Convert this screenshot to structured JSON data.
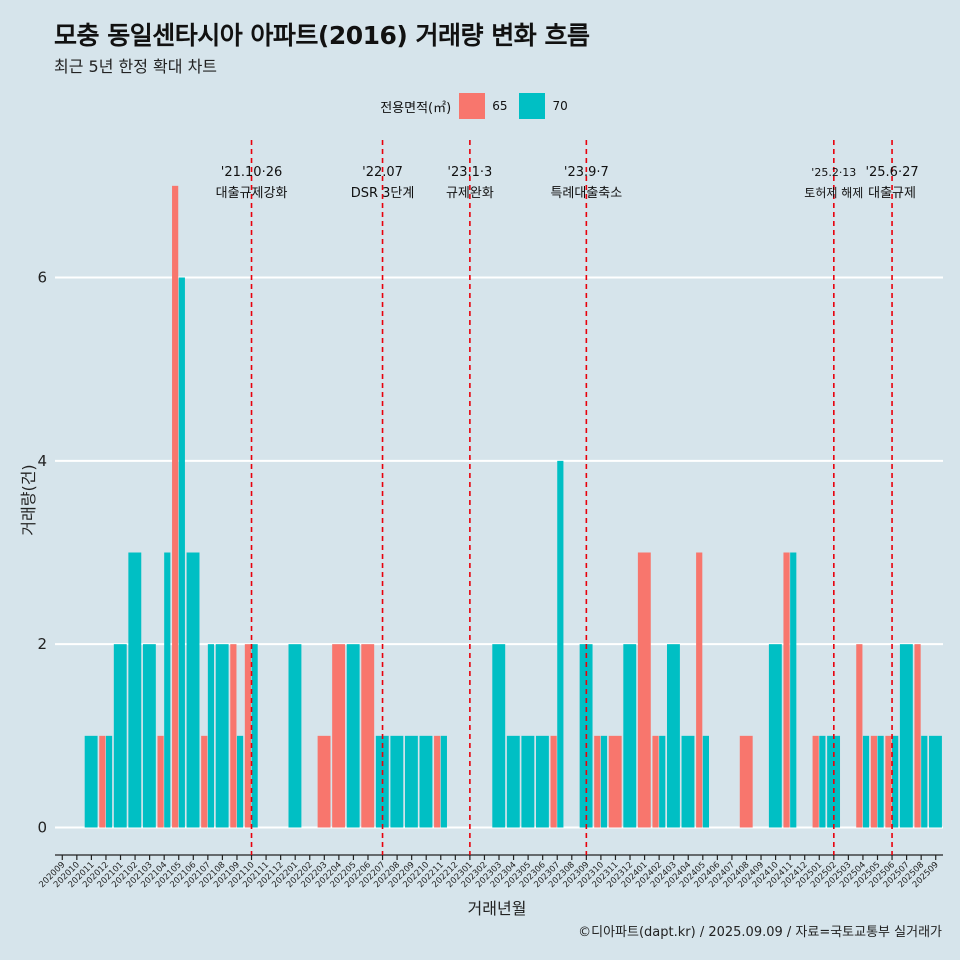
{
  "title": "모충 동일센타시아 아파트(2016) 거래량 변화 흐름",
  "subtitle": "최근 5년 한정 확대 차트",
  "caption": "©디아파트(dapt.kr) / 2025.09.09 / 자료=국토교통부 실거래가",
  "legend": {
    "title": "전용면적(㎡)",
    "items": [
      {
        "label": "65",
        "color": "#f8766d"
      },
      {
        "label": "70",
        "color": "#00bfc4"
      }
    ]
  },
  "chart_data": {
    "type": "bar",
    "title": "모충 동일센타시아 아파트(2016) 거래량 변화 흐름",
    "subtitle": "최근 5년 한정 확대 차트",
    "xlabel": "거래년월",
    "ylabel": "거래량(건)",
    "ylim": [
      -0.3,
      7.5
    ],
    "yticks": [
      0,
      2,
      4,
      6
    ],
    "grid": true,
    "legend_position": "top",
    "categories": [
      "202009",
      "202010",
      "202011",
      "202012",
      "202101",
      "202102",
      "202103",
      "202104",
      "202105",
      "202106",
      "202107",
      "202108",
      "202109",
      "202110",
      "202111",
      "202112",
      "202201",
      "202202",
      "202203",
      "202204",
      "202205",
      "202206",
      "202207",
      "202208",
      "202209",
      "202210",
      "202211",
      "202212",
      "202301",
      "202302",
      "202303",
      "202304",
      "202305",
      "202306",
      "202307",
      "202308",
      "202309",
      "202310",
      "202311",
      "202312",
      "202401",
      "202402",
      "202403",
      "202404",
      "202405",
      "202406",
      "202407",
      "202408",
      "202409",
      "202410",
      "202411",
      "202412",
      "202501",
      "202502",
      "202503",
      "202504",
      "202505",
      "202506",
      "202507",
      "202508",
      "202509"
    ],
    "series": [
      {
        "name": "65",
        "color": "#f8766d",
        "values": [
          0,
          0,
          0,
          1,
          0,
          0,
          0,
          1,
          7,
          0,
          1,
          0,
          2,
          2,
          0,
          0,
          0,
          0,
          1,
          2,
          0,
          2,
          0,
          0,
          0,
          0,
          1,
          0,
          0,
          0,
          0,
          0,
          0,
          0,
          1,
          0,
          0,
          1,
          1,
          0,
          3,
          1,
          0,
          0,
          3,
          0,
          0,
          1,
          0,
          0,
          3,
          0,
          1,
          0,
          0,
          2,
          1,
          1,
          0,
          2,
          0
        ]
      },
      {
        "name": "70",
        "color": "#00bfc4",
        "values": [
          0,
          0,
          1,
          1,
          2,
          3,
          2,
          3,
          6,
          3,
          2,
          2,
          1,
          2,
          0,
          0,
          2,
          0,
          0,
          0,
          2,
          0,
          1,
          1,
          1,
          1,
          1,
          0,
          0,
          0,
          2,
          1,
          1,
          1,
          4,
          0,
          2,
          1,
          0,
          2,
          0,
          1,
          2,
          1,
          1,
          0,
          0,
          0,
          0,
          2,
          3,
          0,
          1,
          1,
          0,
          1,
          1,
          1,
          2,
          1,
          1
        ]
      }
    ],
    "annotations": [
      {
        "x": "202110",
        "date": "'21.10·26",
        "label": "대출규제강화"
      },
      {
        "x": "202207",
        "date": "'22.07",
        "label": "DSR 3단계"
      },
      {
        "x": "202301",
        "date": "'23.1·3",
        "label": "규제완화"
      },
      {
        "x": "202309",
        "date": "'23.9·7",
        "label": "특례대출축소"
      },
      {
        "x": "202502",
        "date": "'25.2·13",
        "label": "토허제 해제"
      },
      {
        "x": "202506",
        "date": "'25.6·27",
        "label": "대출규제"
      }
    ]
  }
}
